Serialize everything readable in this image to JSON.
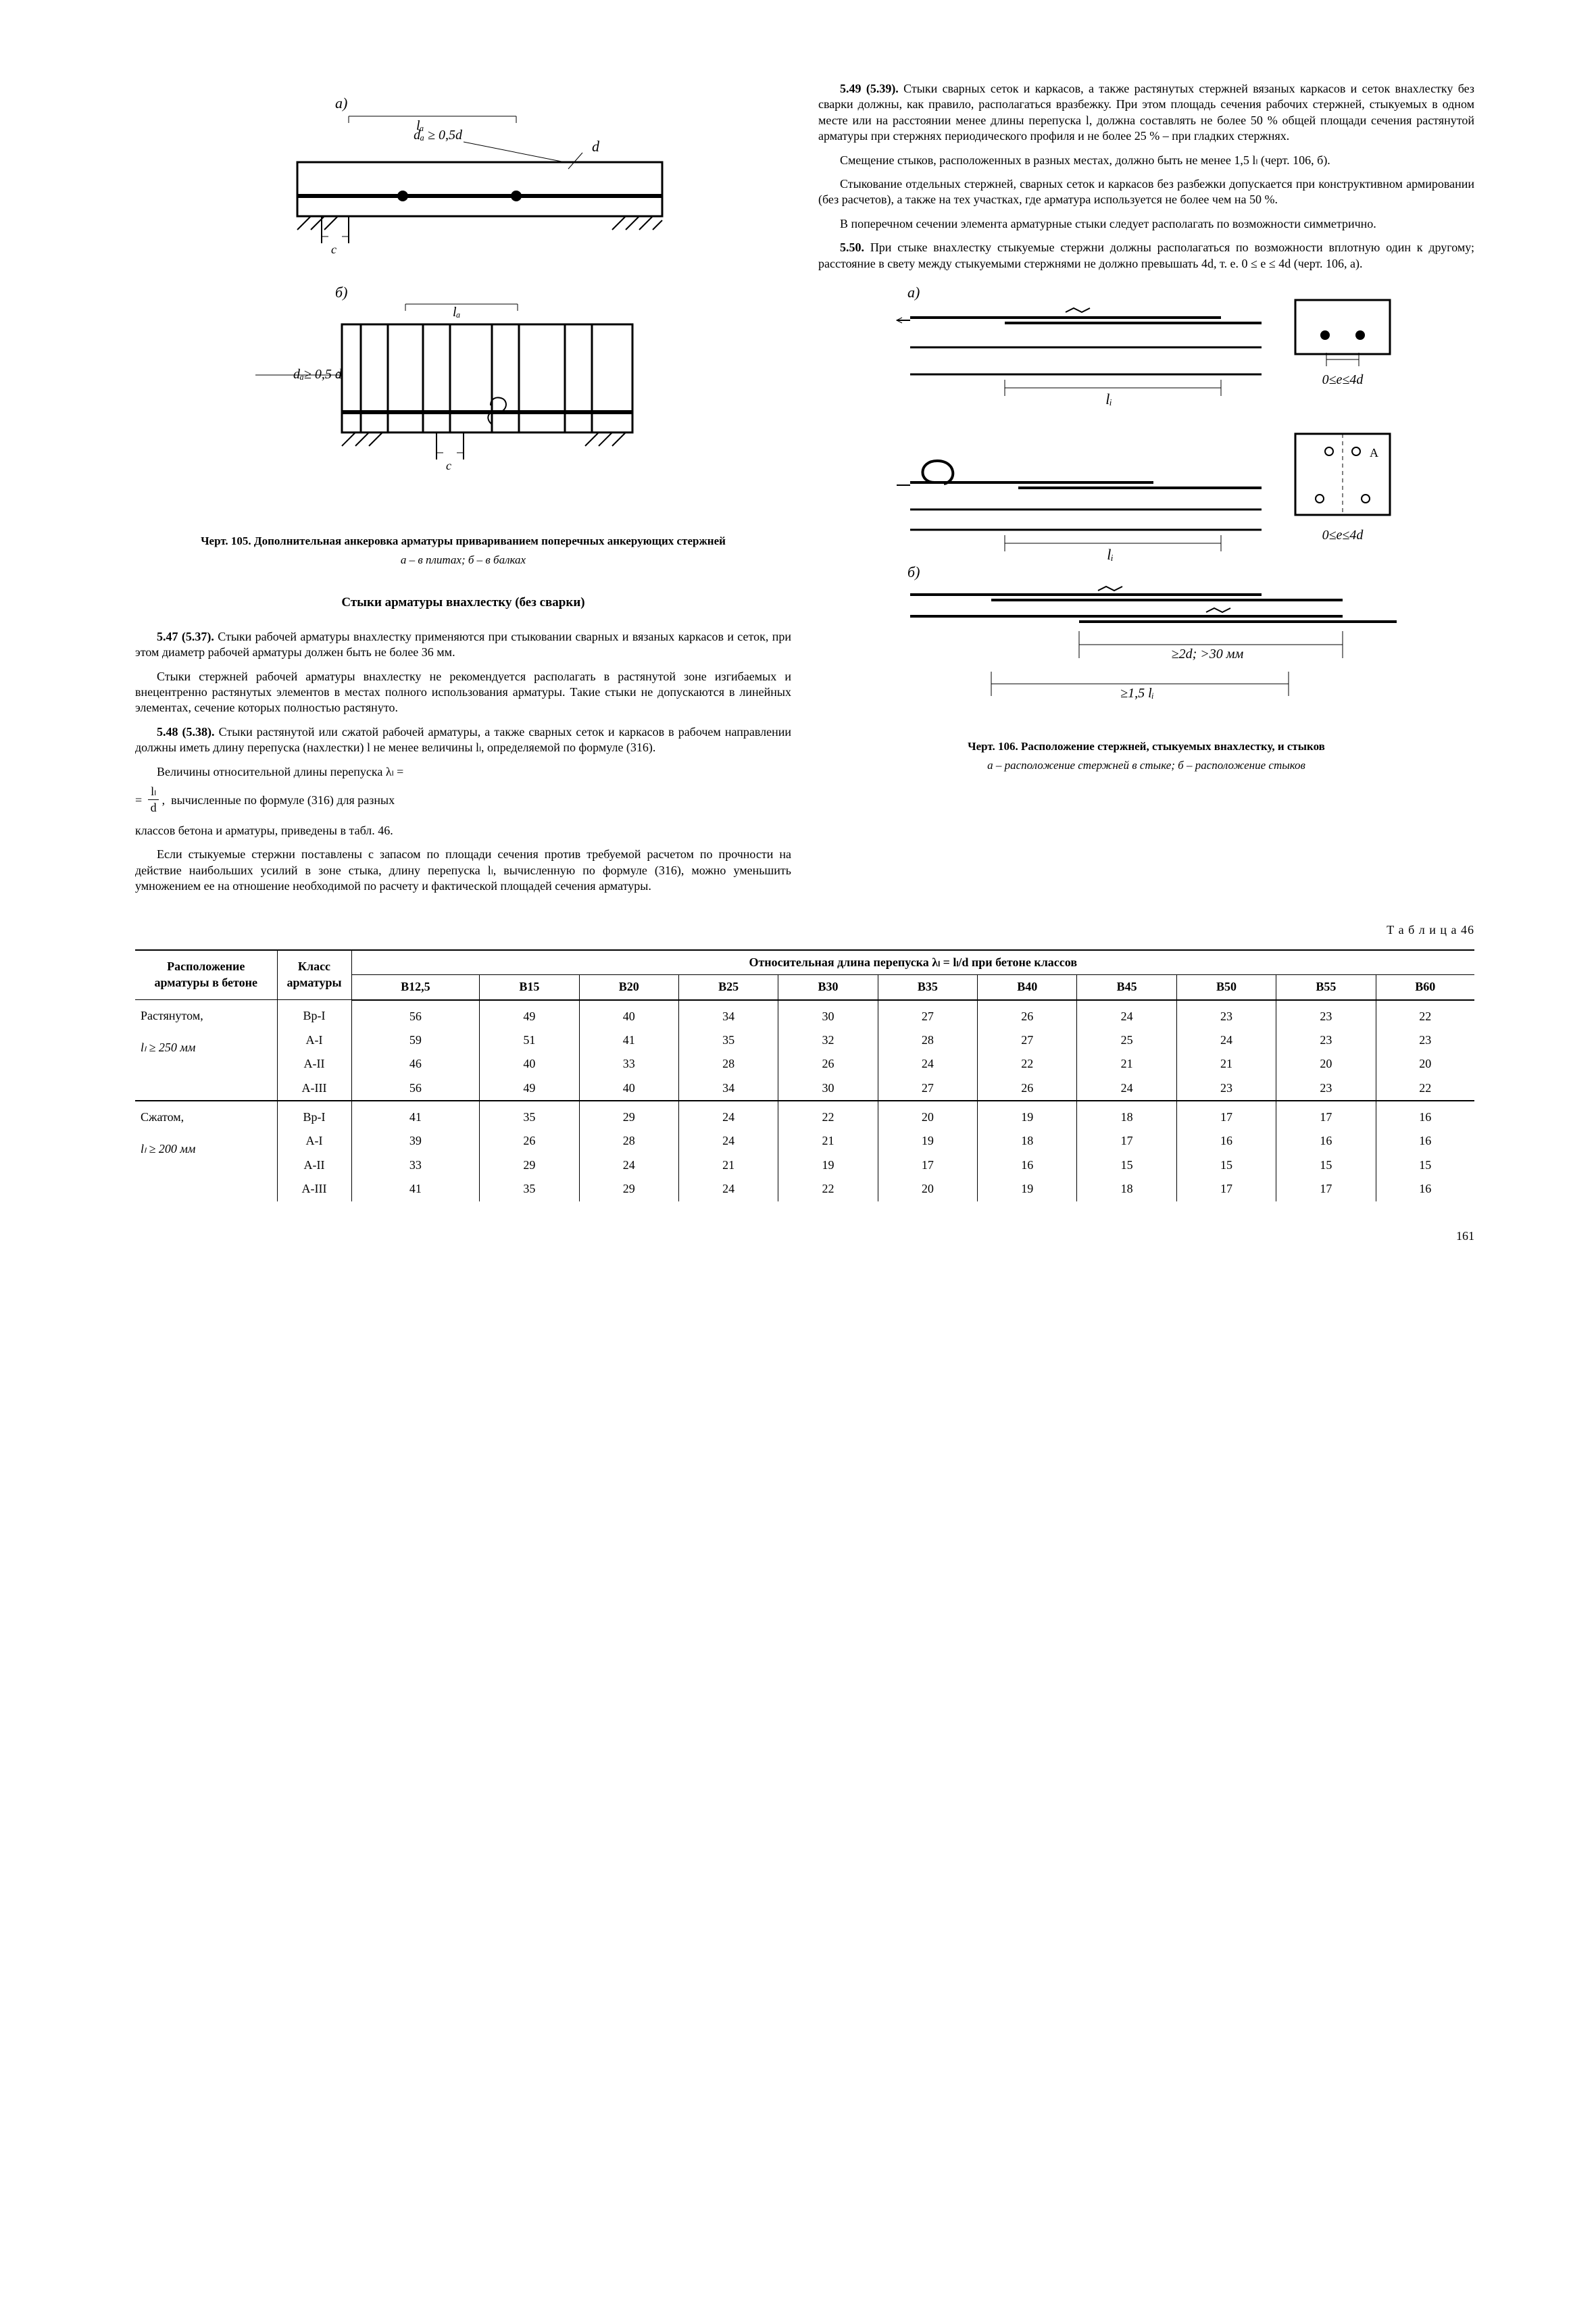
{
  "fig105": {
    "label_a": "а)",
    "label_b": "б)",
    "dim_la": "lₐ",
    "dim_d": "d",
    "dim_da1": "dₐ ≥ 0,5d",
    "dim_da2": "dₐ≥ 0,5 d",
    "c": "c",
    "caption": "Черт. 105. Дополнительная анкеровка арматуры привариванием поперечных анкерующих стержней",
    "subcaption": "а – в плитах;  б – в балках"
  },
  "sectionHeading": "Стыки арматуры внахлестку (без сварки)",
  "p547": "5.47 (5.37). Стыки рабочей арматуры внахлестку применяются при стыковании сварных и вязаных каркасов и сеток, при этом диаметр рабочей арматуры должен быть не более 36 мм.",
  "p547b": "Стыки стержней рабочей арматуры внахлестку не рекомендуется располагать в растянутой зоне изгибаемых и внецентренно растянутых элементов в местах полного использования арматуры. Такие стыки не допускаются в линейных элементах, сечение которых полностью растянуто.",
  "p548a": "5.48 (5.38). Стыки растянутой или сжатой рабочей арматуры, а также сварных сеток и каркасов в рабочем направлении должны иметь длину перепуска (нахлестки) l не менее величины lₗ, определяемой по формуле (316).",
  "p548b_pre": "Величины относительной длины перепуска λₗ =",
  "p548b_post": "вычисленные по формуле (316) для разных",
  "p548c": "классов бетона и арматуры, приведены в табл. 46.",
  "p548d": "Если стыкуемые стержни поставлены с запасом по площади сечения против требуемой расчетом по прочности на действие наибольших усилий в зоне стыка, длину перепуска lₗ, вычисленную по формуле (316), можно уменьшить умножением ее на отношение необходимой по расчету и фактической площадей сечения арматуры.",
  "frac_num": "lₗ",
  "frac_den": "d",
  "p549a": "5.49 (5.39). Стыки сварных сеток и каркасов, а также растянутых стержней вязаных каркасов и сеток внахлестку без сварки должны, как правило, располагаться вразбежку. При этом площадь сечения рабочих стержней, стыкуемых в одном месте или на расстоянии менее длины перепуска l, должна составлять не более 50 % общей площади сечения растянутой арматуры при стержнях периодического профиля и не более 25 % – при гладких стержнях.",
  "p549b": "Смещение стыков, расположенных в разных местах, должно быть не менее 1,5 lₗ (черт. 106, б).",
  "p549c": "Стыкование отдельных стержней, сварных сеток и каркасов без разбежки допускается при конструктивном армировании (без расчетов), а также на тех участках, где арматура используется не более чем на 50 %.",
  "p549d": "В поперечном сечении элемента арматурные стыки следует располагать по возможности симметрично.",
  "p550": "5.50. При стыке внахлестку стыкуемые стержни должны располагаться по возможности вплотную один к другому; расстояние в свету между стыкуемыми стержнями не должно превышать 4d, т. е. 0 ≤ e ≤ 4d (черт. 106, а).",
  "fig106": {
    "label_a": "а)",
    "label_b": "б)",
    "li": "lᵢ",
    "e1": "0≤e≤4d",
    "e2": "0≤e≤4d",
    "d2": "≥2d; >30 мм",
    "l15": "≥1,5 lᵢ",
    "A": "А",
    "caption": "Черт. 106. Расположение стержней, стыкуемых внахлестку, и стыков",
    "subcaption": "а – расположение стержней в стыке; б – расположение стыков"
  },
  "tableLabel": "Т а б л и ц а  46",
  "tableHeader": {
    "h1": "Расположение арматуры в бетоне",
    "h2": "Класс арматуры",
    "h3": "Относительная длина перепуска λₗ = lₗ/d  при бетоне классов",
    "classes": [
      "B12,5",
      "B15",
      "B20",
      "B25",
      "B30",
      "B35",
      "B40",
      "B45",
      "B50",
      "B55",
      "B60"
    ]
  },
  "tableGroups": [
    {
      "label1": "Растянутом,",
      "label2": "lₗ ≥ 250 мм",
      "rows": [
        {
          "cls": "Bp-I",
          "vals": [
            "56",
            "49",
            "40",
            "34",
            "30",
            "27",
            "26",
            "24",
            "23",
            "23",
            "22"
          ]
        },
        {
          "cls": "A-I",
          "vals": [
            "59",
            "51",
            "41",
            "35",
            "32",
            "28",
            "27",
            "25",
            "24",
            "23",
            "23"
          ]
        },
        {
          "cls": "A-II",
          "vals": [
            "46",
            "40",
            "33",
            "28",
            "26",
            "24",
            "22",
            "21",
            "21",
            "20",
            "20"
          ]
        },
        {
          "cls": "A-III",
          "vals": [
            "56",
            "49",
            "40",
            "34",
            "30",
            "27",
            "26",
            "24",
            "23",
            "23",
            "22"
          ]
        }
      ]
    },
    {
      "label1": "Сжатом,",
      "label2": "lₗ ≥ 200 мм",
      "rows": [
        {
          "cls": "Bp-I",
          "vals": [
            "41",
            "35",
            "29",
            "24",
            "22",
            "20",
            "19",
            "18",
            "17",
            "17",
            "16"
          ]
        },
        {
          "cls": "A-I",
          "vals": [
            "39",
            "26",
            "28",
            "24",
            "21",
            "19",
            "18",
            "17",
            "16",
            "16",
            "16"
          ]
        },
        {
          "cls": "A-II",
          "vals": [
            "33",
            "29",
            "24",
            "21",
            "19",
            "17",
            "16",
            "15",
            "15",
            "15",
            "15"
          ]
        },
        {
          "cls": "A-III",
          "vals": [
            "41",
            "35",
            "29",
            "24",
            "22",
            "20",
            "19",
            "18",
            "17",
            "17",
            "16"
          ]
        }
      ]
    }
  ],
  "pageNum": "161"
}
